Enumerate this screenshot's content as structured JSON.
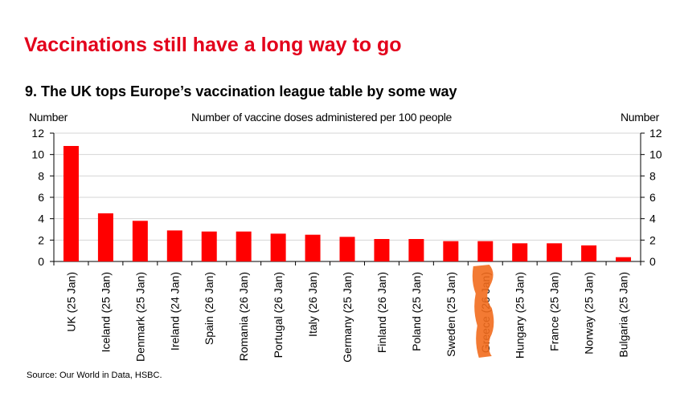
{
  "header": {
    "title": "Vaccinations still have a long way to go",
    "subtitle": "9. The UK tops Europe’s vaccination league table by some way"
  },
  "chart_data": {
    "type": "bar",
    "title": "Number of vaccine doses administered per 100 people",
    "ylabel_left": "Number",
    "ylabel_right": "Number",
    "ylim": [
      0,
      12
    ],
    "yticks": [
      0,
      2,
      4,
      6,
      8,
      10,
      12
    ],
    "grid": true,
    "bar_color": "#ff0000",
    "categories": [
      "UK (25 Jan)",
      "Iceland (25 Jan)",
      "Denmark (25 Jan)",
      "Ireland (24 Jan)",
      "Spain (26 Jan)",
      "Romania (26 Jan)",
      "Portugal (26 Jan)",
      "Italy (26 Jan)",
      "Germany (25 Jan)",
      "Finland (26 Jan)",
      "Poland (25 Jan)",
      "Sweden (25 Jan)",
      "Greece (26 Jan)",
      "Hungary (25 Jan)",
      "France (25 Jan)",
      "Norway (25 Jan)",
      "Bulgaria (25 Jan)"
    ],
    "values": [
      10.8,
      4.5,
      3.8,
      2.9,
      2.8,
      2.8,
      2.6,
      2.5,
      2.3,
      2.1,
      2.1,
      1.9,
      1.9,
      1.7,
      1.7,
      1.5,
      0.4
    ],
    "annotation_color": "#f26b1d"
  },
  "footer": {
    "source": "Source: Our World in Data, HSBC."
  }
}
